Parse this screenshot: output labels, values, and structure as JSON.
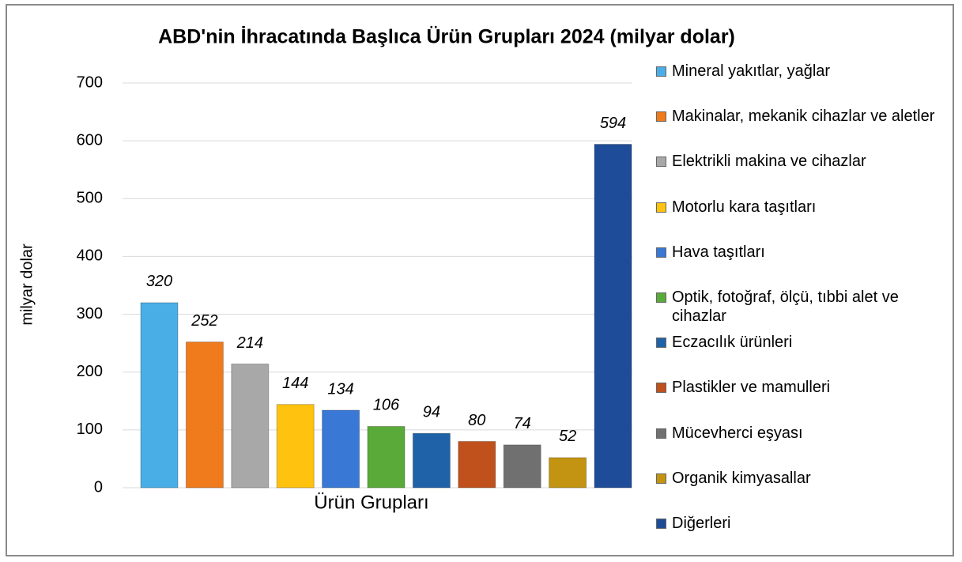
{
  "chart_data": {
    "type": "bar",
    "title": "ABD'nin İhracatında Başlıca Ürün Grupları 2024 (milyar dolar)",
    "x_label": "Ürün Grupları",
    "y_label": "milyar dolar",
    "categories": [
      "Ürün Grupları"
    ],
    "series": [
      {
        "name": "Mineral yakıtlar, yağlar",
        "color": "#4aaee6",
        "values": [
          320
        ]
      },
      {
        "name": "Makinalar, mekanik cihazlar ve aletler",
        "color": "#ef7b1c",
        "values": [
          252
        ]
      },
      {
        "name": "Elektrikli makina ve cihazlar",
        "color": "#a8a8a8",
        "values": [
          214
        ]
      },
      {
        "name": "Motorlu kara taşıtları",
        "color": "#ffc20e",
        "values": [
          144
        ]
      },
      {
        "name": "Hava taşıtları",
        "color": "#3a78d6",
        "values": [
          134
        ]
      },
      {
        "name": "Optik, fotoğraf, ölçü, tıbbi alet ve cihazlar",
        "color": "#5aaa3a",
        "values": [
          106
        ]
      },
      {
        "name": "Eczacılık ürünleri",
        "color": "#1f62a8",
        "values": [
          94
        ]
      },
      {
        "name": "Plastikler ve mamulleri",
        "color": "#c0501c",
        "values": [
          80
        ]
      },
      {
        "name": "Mücevherci eşyası",
        "color": "#707070",
        "values": [
          74
        ]
      },
      {
        "name": "Organik kimyasallar",
        "color": "#c39412",
        "values": [
          52
        ]
      },
      {
        "name": "Diğerleri",
        "color": "#1f4c98",
        "values": [
          594
        ]
      }
    ],
    "ylim": [
      0,
      700
    ],
    "yticks": [
      0,
      100,
      200,
      300,
      400,
      500,
      600,
      700
    ],
    "grid": true,
    "legend": "right"
  }
}
